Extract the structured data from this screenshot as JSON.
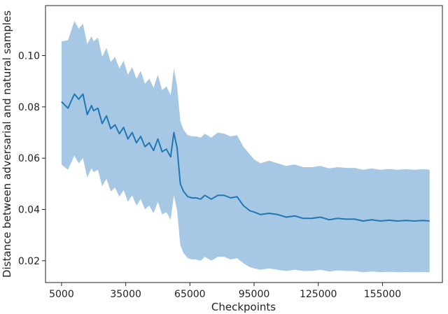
{
  "chart_data": {
    "type": "line",
    "xlabel": "Checkpoints",
    "ylabel": "Distance between adversarial and natural samples",
    "xlim": [
      -2500,
      183000
    ],
    "ylim": [
      0.0115,
      0.1195
    ],
    "x_ticks": [
      5000,
      35000,
      65000,
      95000,
      125000,
      155000
    ],
    "x_tick_labels": [
      "5000",
      "35000",
      "65000",
      "95000",
      "125000",
      "155000"
    ],
    "y_ticks": [
      0.02,
      0.04,
      0.06,
      0.08,
      0.1
    ],
    "y_tick_labels": [
      "0.02",
      "0.04",
      "0.06",
      "0.08",
      "0.10"
    ],
    "grid": false,
    "legend": "none",
    "colors": {
      "line": "#1f77b4",
      "band": "#a6c8e4",
      "axes": "#222222"
    },
    "series": [
      {
        "x": [
          5000,
          8000,
          11000,
          13000,
          15000,
          17000,
          19000,
          20000,
          22000,
          24000,
          26000,
          28000,
          30000,
          32000,
          34000,
          36000,
          38000,
          40000,
          42000,
          44000,
          46000,
          48000,
          50000,
          52000,
          54000,
          56000,
          57500,
          59000,
          60500,
          62000,
          64000,
          66000,
          68000,
          70000,
          72000,
          75000,
          78000,
          81000,
          84000,
          87000,
          90000,
          93000,
          95000,
          98000,
          102000,
          106000,
          110000,
          114000,
          118000,
          122000,
          126000,
          130000,
          134000,
          138000,
          142000,
          146000,
          150000,
          154000,
          158000,
          162000,
          166000,
          170000,
          174000,
          177000
        ],
        "values": [
          0.082,
          0.0795,
          0.085,
          0.083,
          0.085,
          0.077,
          0.0805,
          0.0785,
          0.0795,
          0.0735,
          0.0765,
          0.0715,
          0.073,
          0.0695,
          0.072,
          0.0675,
          0.07,
          0.066,
          0.0685,
          0.0645,
          0.066,
          0.063,
          0.0675,
          0.0625,
          0.0635,
          0.0605,
          0.07,
          0.064,
          0.05,
          0.047,
          0.045,
          0.0445,
          0.0445,
          0.044,
          0.0455,
          0.044,
          0.0455,
          0.0455,
          0.0445,
          0.045,
          0.0415,
          0.0395,
          0.039,
          0.038,
          0.0385,
          0.038,
          0.037,
          0.0375,
          0.0365,
          0.0365,
          0.037,
          0.036,
          0.0365,
          0.0362,
          0.0362,
          0.0355,
          0.036,
          0.0355,
          0.0358,
          0.0355,
          0.0357,
          0.0355,
          0.0357,
          0.0355
        ],
        "lower": [
          0.0575,
          0.0555,
          0.061,
          0.058,
          0.06,
          0.0525,
          0.056,
          0.0545,
          0.0555,
          0.049,
          0.052,
          0.047,
          0.0485,
          0.045,
          0.0475,
          0.043,
          0.0455,
          0.0415,
          0.044,
          0.04,
          0.0415,
          0.0385,
          0.043,
          0.038,
          0.039,
          0.036,
          0.0455,
          0.0395,
          0.026,
          0.023,
          0.021,
          0.0205,
          0.0205,
          0.02,
          0.0215,
          0.02,
          0.0215,
          0.0215,
          0.0205,
          0.021,
          0.019,
          0.0175,
          0.017,
          0.0165,
          0.017,
          0.0165,
          0.016,
          0.0165,
          0.016,
          0.016,
          0.0165,
          0.0158,
          0.0162,
          0.016,
          0.016,
          0.0155,
          0.0158,
          0.0155,
          0.0157,
          0.0155,
          0.0156,
          0.0155,
          0.0156,
          0.0155
        ],
        "upper": [
          0.1055,
          0.106,
          0.1135,
          0.1105,
          0.1125,
          0.1045,
          0.1075,
          0.1055,
          0.107,
          0.0995,
          0.103,
          0.0975,
          0.0995,
          0.095,
          0.098,
          0.0925,
          0.0955,
          0.091,
          0.094,
          0.089,
          0.091,
          0.0875,
          0.0925,
          0.0865,
          0.088,
          0.0845,
          0.095,
          0.088,
          0.0745,
          0.071,
          0.069,
          0.0685,
          0.0685,
          0.068,
          0.0695,
          0.068,
          0.07,
          0.0695,
          0.0685,
          0.069,
          0.0645,
          0.0615,
          0.0595,
          0.058,
          0.059,
          0.058,
          0.057,
          0.0575,
          0.0565,
          0.0565,
          0.057,
          0.056,
          0.0565,
          0.0562,
          0.0562,
          0.0555,
          0.056,
          0.0555,
          0.0558,
          0.0555,
          0.0557,
          0.0555,
          0.0557,
          0.0555
        ]
      }
    ]
  }
}
